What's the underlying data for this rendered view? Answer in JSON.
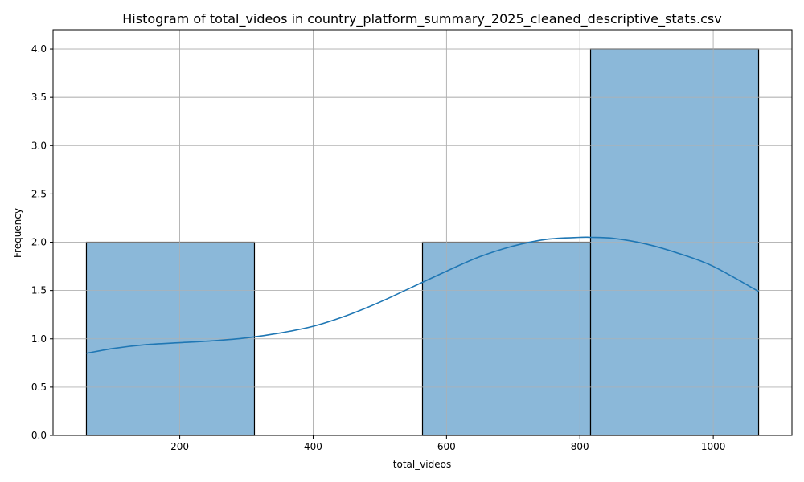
{
  "chart_data": {
    "type": "bar",
    "title": "Histogram of total_videos in country_platform_summary_2025_cleaned_descriptive_stats.csv",
    "xlabel": "total_videos",
    "ylabel": "Frequency",
    "xlim": [
      10,
      1118
    ],
    "ylim": [
      0,
      4.2
    ],
    "xticks": [
      200,
      400,
      600,
      800,
      1000
    ],
    "xtick_labels": [
      "200",
      "400",
      "600",
      "800",
      "1000"
    ],
    "yticks": [
      0,
      0.5,
      1.0,
      1.5,
      2.0,
      2.5,
      3.0,
      3.5,
      4.0
    ],
    "ytick_labels": [
      "0.0",
      "0.5",
      "1.0",
      "1.5",
      "2.0",
      "2.5",
      "3.0",
      "3.5",
      "4.0"
    ],
    "grid": true,
    "bins": [
      {
        "start": 60,
        "end": 312,
        "count": 2
      },
      {
        "start": 312,
        "end": 564,
        "count": 0
      },
      {
        "start": 564,
        "end": 816,
        "count": 2
      },
      {
        "start": 816,
        "end": 1068,
        "count": 4
      }
    ],
    "kde": {
      "x": [
        60,
        100,
        150,
        200,
        250,
        300,
        350,
        400,
        450,
        500,
        550,
        600,
        650,
        700,
        750,
        800,
        816,
        850,
        900,
        950,
        1000,
        1068
      ],
      "y": [
        0.85,
        0.9,
        0.94,
        0.96,
        0.98,
        1.01,
        1.06,
        1.13,
        1.24,
        1.38,
        1.54,
        1.7,
        1.85,
        1.96,
        2.03,
        2.05,
        2.05,
        2.04,
        1.98,
        1.88,
        1.75,
        1.49
      ]
    },
    "colors": {
      "bar_fill": "#8bb8d9",
      "bar_edge": "#000000",
      "kde_line": "#1f77b4",
      "grid": "#b0b0b0",
      "axis": "#000000"
    }
  }
}
